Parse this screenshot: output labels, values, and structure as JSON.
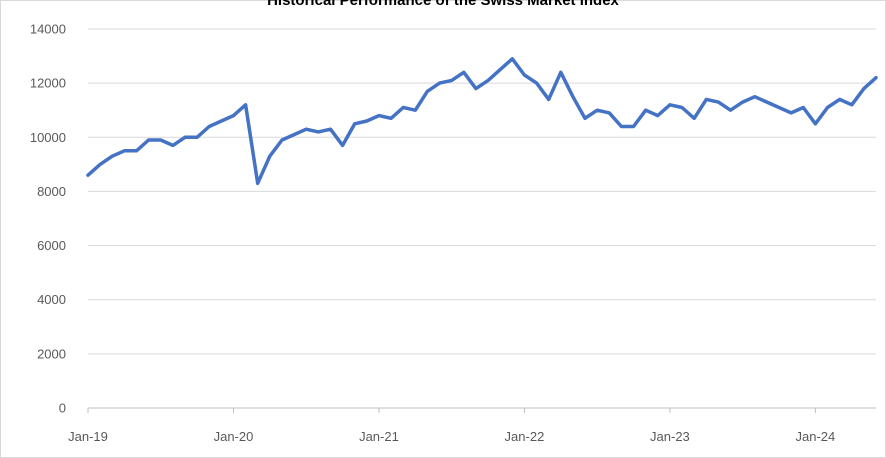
{
  "chart_data": {
    "type": "line",
    "title": "Historical Performance of the Swiss Market Index",
    "xlabel": "",
    "ylabel": "",
    "ylim": [
      0,
      14000
    ],
    "yticks": [
      0,
      2000,
      4000,
      6000,
      8000,
      10000,
      12000,
      14000
    ],
    "xticks": [
      "Jan-19",
      "Jan-20",
      "Jan-21",
      "Jan-22",
      "Jan-23",
      "Jan-24"
    ],
    "x_range": [
      "2019-01",
      "2024-06"
    ],
    "grid": "horizontal",
    "legend": "none",
    "line_color": "#4472c4",
    "series": [
      {
        "x": [
          "2019-01",
          "2019-02",
          "2019-03",
          "2019-04",
          "2019-05",
          "2019-06",
          "2019-07",
          "2019-08",
          "2019-09",
          "2019-10",
          "2019-11",
          "2019-12",
          "2020-01",
          "2020-02",
          "2020-03",
          "2020-04",
          "2020-05",
          "2020-06",
          "2020-07",
          "2020-08",
          "2020-09",
          "2020-10",
          "2020-11",
          "2020-12",
          "2021-01",
          "2021-02",
          "2021-03",
          "2021-04",
          "2021-05",
          "2021-06",
          "2021-07",
          "2021-08",
          "2021-09",
          "2021-10",
          "2021-11",
          "2021-12",
          "2022-01",
          "2022-02",
          "2022-03",
          "2022-04",
          "2022-05",
          "2022-06",
          "2022-07",
          "2022-08",
          "2022-09",
          "2022-10",
          "2022-11",
          "2022-12",
          "2023-01",
          "2023-02",
          "2023-03",
          "2023-04",
          "2023-05",
          "2023-06",
          "2023-07",
          "2023-08",
          "2023-09",
          "2023-10",
          "2023-11",
          "2023-12",
          "2024-01",
          "2024-02",
          "2024-03",
          "2024-04",
          "2024-05",
          "2024-06"
        ],
        "values": [
          8600,
          9000,
          9300,
          9500,
          9500,
          9900,
          9900,
          9700,
          10000,
          10000,
          10400,
          10600,
          10800,
          11200,
          8300,
          9300,
          9900,
          10100,
          10300,
          10200,
          10300,
          9700,
          10500,
          10600,
          10800,
          10700,
          11100,
          11000,
          11700,
          12000,
          12100,
          12400,
          11800,
          12100,
          12500,
          12900,
          12300,
          12000,
          11400,
          12400,
          11500,
          10700,
          11000,
          10900,
          10400,
          10400,
          11000,
          10800,
          11200,
          11100,
          10700,
          11400,
          11300,
          11000,
          11300,
          11500,
          11300,
          11100,
          10900,
          11100,
          10500,
          11100,
          11400,
          11200,
          11800,
          12200
        ]
      }
    ]
  }
}
